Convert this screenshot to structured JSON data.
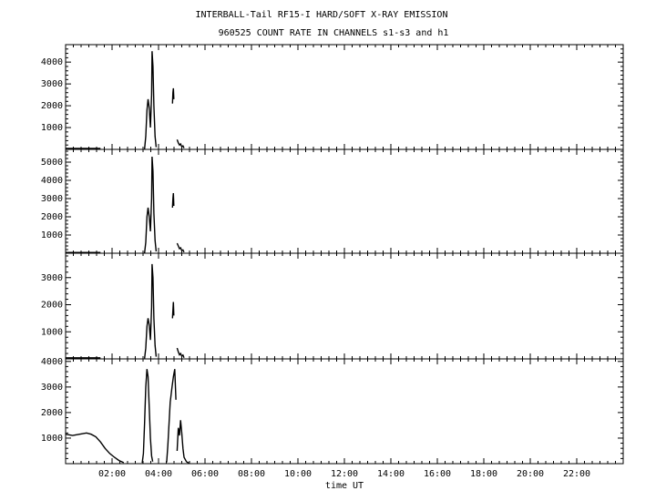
{
  "chart_data": {
    "type": "line",
    "title": "INTERBALL-Tail RF15-I HARD/SOFT X-RAY EMISSION",
    "subtitle": "960525  COUNT RATE IN CHANNELS s1-s3 and h1",
    "xlabel": "time UT",
    "x_ticks": [
      "02:00",
      "04:00",
      "06:00",
      "08:00",
      "10:00",
      "12:00",
      "14:00",
      "16:00",
      "18:00",
      "20:00",
      "22:00"
    ],
    "x_range_hours": [
      0,
      24
    ],
    "grid": false,
    "panels": [
      {
        "ylim": [
          0,
          4800
        ],
        "y_ticks": [
          1000,
          2000,
          3000,
          4000
        ],
        "segments": [
          [
            [
              0,
              40
            ],
            [
              1.5,
              40
            ]
          ],
          [
            [
              3.4,
              20
            ],
            [
              3.45,
              600
            ],
            [
              3.5,
              1800
            ],
            [
              3.55,
              2300
            ],
            [
              3.6,
              1900
            ],
            [
              3.65,
              1000
            ],
            [
              3.7,
              2500
            ],
            [
              3.72,
              4500
            ],
            [
              3.76,
              3800
            ],
            [
              3.8,
              2000
            ],
            [
              3.85,
              600
            ],
            [
              3.9,
              100
            ]
          ],
          [
            [
              4.6,
              2100
            ],
            [
              4.62,
              2600
            ],
            [
              4.64,
              2800
            ],
            [
              4.66,
              2300
            ]
          ],
          [
            [
              4.8,
              450
            ],
            [
              4.85,
              300
            ],
            [
              4.9,
              200
            ],
            [
              4.95,
              250
            ],
            [
              5.0,
              120
            ],
            [
              5.05,
              160
            ],
            [
              5.1,
              60
            ]
          ]
        ]
      },
      {
        "ylim": [
          0,
          5700
        ],
        "y_ticks": [
          1000,
          2000,
          3000,
          4000,
          5000
        ],
        "segments": [
          [
            [
              0,
              40
            ],
            [
              1.5,
              40
            ]
          ],
          [
            [
              3.4,
              20
            ],
            [
              3.45,
              600
            ],
            [
              3.5,
              2000
            ],
            [
              3.55,
              2500
            ],
            [
              3.6,
              2000
            ],
            [
              3.65,
              1200
            ],
            [
              3.7,
              3000
            ],
            [
              3.72,
              5300
            ],
            [
              3.76,
              4500
            ],
            [
              3.8,
              2200
            ],
            [
              3.85,
              700
            ],
            [
              3.9,
              100
            ]
          ],
          [
            [
              4.6,
              2500
            ],
            [
              4.62,
              3000
            ],
            [
              4.64,
              3300
            ],
            [
              4.66,
              2600
            ]
          ],
          [
            [
              4.8,
              550
            ],
            [
              4.85,
              400
            ],
            [
              4.9,
              250
            ],
            [
              4.95,
              300
            ],
            [
              5.0,
              150
            ],
            [
              5.05,
              180
            ],
            [
              5.1,
              60
            ]
          ]
        ]
      },
      {
        "ylim": [
          0,
          3900
        ],
        "y_ticks": [
          1000,
          2000,
          3000
        ],
        "segments": [
          [
            [
              0,
              40
            ],
            [
              1.5,
              40
            ]
          ],
          [
            [
              3.4,
              20
            ],
            [
              3.45,
              400
            ],
            [
              3.5,
              1200
            ],
            [
              3.55,
              1500
            ],
            [
              3.6,
              1250
            ],
            [
              3.65,
              700
            ],
            [
              3.7,
              1900
            ],
            [
              3.72,
              3500
            ],
            [
              3.76,
              3000
            ],
            [
              3.8,
              1500
            ],
            [
              3.85,
              500
            ],
            [
              3.9,
              80
            ]
          ],
          [
            [
              4.6,
              1500
            ],
            [
              4.62,
              1800
            ],
            [
              4.64,
              2100
            ],
            [
              4.66,
              1600
            ]
          ],
          [
            [
              4.8,
              400
            ],
            [
              4.85,
              260
            ],
            [
              4.9,
              150
            ],
            [
              4.95,
              200
            ],
            [
              5.0,
              100
            ],
            [
              5.05,
              140
            ],
            [
              5.1,
              40
            ]
          ]
        ]
      },
      {
        "ylim": [
          0,
          4100
        ],
        "y_ticks": [
          1000,
          2000,
          3000,
          4000
        ],
        "segments": [
          [
            [
              0,
              1150
            ],
            [
              0.3,
              1100
            ],
            [
              0.6,
              1150
            ],
            [
              0.9,
              1200
            ],
            [
              1.1,
              1150
            ],
            [
              1.3,
              1050
            ],
            [
              1.5,
              850
            ],
            [
              1.7,
              600
            ],
            [
              1.9,
              400
            ],
            [
              2.1,
              250
            ],
            [
              2.3,
              120
            ],
            [
              2.5,
              40
            ]
          ],
          [
            [
              3.3,
              30
            ],
            [
              3.35,
              400
            ],
            [
              3.4,
              1600
            ],
            [
              3.45,
              3000
            ],
            [
              3.5,
              3700
            ],
            [
              3.55,
              3400
            ],
            [
              3.6,
              2200
            ],
            [
              3.65,
              1000
            ],
            [
              3.7,
              300
            ],
            [
              3.75,
              80
            ]
          ],
          [
            [
              4.35,
              50
            ],
            [
              4.4,
              700
            ],
            [
              4.5,
              2400
            ],
            [
              4.58,
              3000
            ],
            [
              4.64,
              3400
            ],
            [
              4.7,
              3700
            ],
            [
              4.75,
              2500
            ]
          ],
          [
            [
              4.8,
              500
            ],
            [
              4.85,
              1400
            ],
            [
              4.9,
              1100
            ],
            [
              4.95,
              1700
            ],
            [
              5.0,
              1200
            ],
            [
              5.05,
              600
            ],
            [
              5.1,
              250
            ],
            [
              5.2,
              80
            ],
            [
              5.3,
              20
            ]
          ]
        ]
      }
    ]
  }
}
